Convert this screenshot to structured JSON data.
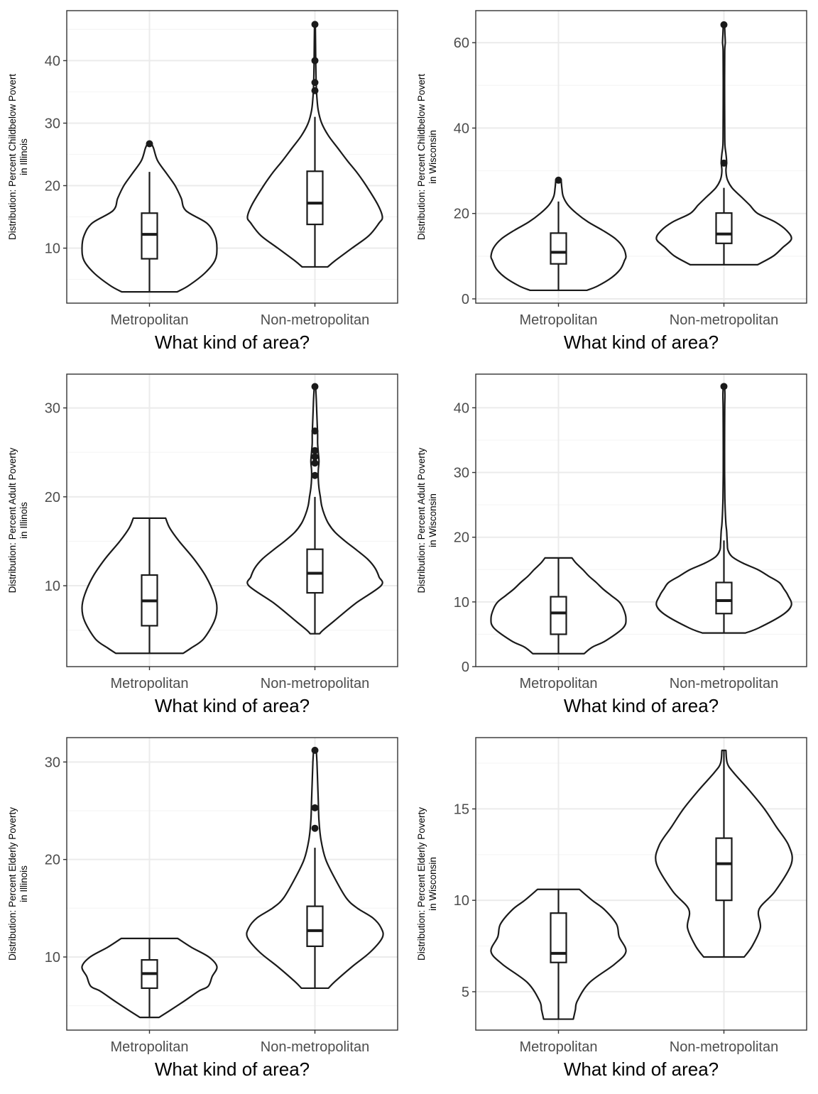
{
  "figure": {
    "background": "#ffffff",
    "panel_border": "#333333",
    "grid_major": "#ebebeb",
    "grid_minor": "#f5f5f5",
    "ink": "#1a1a1a"
  },
  "chart_data": [
    {
      "type": "violin",
      "xlabel": "What kind of area?",
      "ylabel_lines": [
        "Distribution: Percent Childbelow Povert",
        "in Illinois"
      ],
      "categories": [
        "Metropolitan",
        "Non-metropolitan"
      ],
      "ylim": [
        1.2,
        48.0
      ],
      "yticks": [
        10,
        20,
        30,
        40
      ],
      "yminor": [
        5,
        15,
        25,
        35,
        45
      ],
      "groups": [
        {
          "category": "Metropolitan",
          "min": 3.0,
          "q1": 8.3,
          "median": 12.2,
          "q3": 15.6,
          "whisker_high": 22.2,
          "max": 26.7,
          "outliers": [
            26.7
          ],
          "density": [
            [
              3.0,
              0.41
            ],
            [
              4.0,
              0.58
            ],
            [
              6.0,
              0.82
            ],
            [
              8.0,
              0.97
            ],
            [
              10.0,
              1.0
            ],
            [
              12.0,
              0.97
            ],
            [
              14.0,
              0.85
            ],
            [
              16.0,
              0.54
            ],
            [
              18.0,
              0.47
            ],
            [
              20.0,
              0.38
            ],
            [
              22.0,
              0.25
            ],
            [
              24.0,
              0.12
            ],
            [
              26.0,
              0.06
            ],
            [
              26.7,
              0.03
            ]
          ]
        },
        {
          "category": "Non-metropolitan",
          "min": 7.0,
          "q1": 13.8,
          "median": 17.2,
          "q3": 22.3,
          "whisker_high": 31.0,
          "max": 45.8,
          "outliers": [
            35.2,
            36.5,
            40.0,
            45.8
          ],
          "density": [
            [
              7.0,
              0.19
            ],
            [
              8.0,
              0.3
            ],
            [
              10.0,
              0.55
            ],
            [
              12.0,
              0.8
            ],
            [
              14.0,
              0.95
            ],
            [
              15.0,
              1.0
            ],
            [
              17.0,
              0.93
            ],
            [
              20.0,
              0.76
            ],
            [
              22.0,
              0.63
            ],
            [
              24.0,
              0.48
            ],
            [
              26.0,
              0.34
            ],
            [
              28.0,
              0.2
            ],
            [
              30.0,
              0.1
            ],
            [
              32.0,
              0.05
            ],
            [
              34.0,
              0.03
            ],
            [
              36.0,
              0.02
            ],
            [
              38.0,
              0.015
            ],
            [
              40.0,
              0.012
            ],
            [
              42.0,
              0.01
            ],
            [
              44.0,
              0.008
            ],
            [
              45.8,
              0.006
            ]
          ]
        }
      ]
    },
    {
      "type": "violin",
      "xlabel": "What kind of area?",
      "ylabel_lines": [
        "Distribution: Percent Childbelow Povert",
        "in Wisconsin"
      ],
      "categories": [
        "Metropolitan",
        "Non-metropolitan"
      ],
      "ylim": [
        -1.0,
        67.5
      ],
      "yticks": [
        0,
        20,
        40,
        60
      ],
      "yminor": [
        10,
        30,
        50
      ],
      "groups": [
        {
          "category": "Metropolitan",
          "min": 2.0,
          "q1": 8.2,
          "median": 10.9,
          "q3": 15.4,
          "whisker_high": 22.8,
          "max": 27.8,
          "outliers": [
            27.8
          ],
          "density": [
            [
              2.0,
              0.42
            ],
            [
              3.0,
              0.58
            ],
            [
              5.0,
              0.79
            ],
            [
              7.0,
              0.92
            ],
            [
              9.0,
              0.98
            ],
            [
              10.0,
              1.0
            ],
            [
              12.0,
              0.96
            ],
            [
              14.0,
              0.85
            ],
            [
              16.0,
              0.66
            ],
            [
              18.0,
              0.44
            ],
            [
              20.0,
              0.27
            ],
            [
              22.0,
              0.14
            ],
            [
              24.0,
              0.07
            ],
            [
              26.0,
              0.05
            ],
            [
              27.8,
              0.04
            ]
          ]
        },
        {
          "category": "Non-metropolitan",
          "min": 8.0,
          "q1": 13.0,
          "median": 15.2,
          "q3": 20.1,
          "whisker_high": 26.0,
          "max": 64.2,
          "outliers": [
            31.8,
            64.2
          ],
          "density": [
            [
              8.0,
              0.5
            ],
            [
              10.0,
              0.73
            ],
            [
              12.0,
              0.87
            ],
            [
              14.0,
              1.0
            ],
            [
              16.0,
              0.93
            ],
            [
              18.0,
              0.76
            ],
            [
              20.0,
              0.5
            ],
            [
              22.0,
              0.38
            ],
            [
              24.0,
              0.25
            ],
            [
              26.0,
              0.12
            ],
            [
              28.0,
              0.05
            ],
            [
              30.0,
              0.03
            ],
            [
              32.0,
              0.04
            ],
            [
              34.0,
              0.03
            ],
            [
              36.0,
              0.015
            ],
            [
              40.0,
              0.012
            ],
            [
              50.0,
              0.01
            ],
            [
              58.0,
              0.012
            ],
            [
              60.0,
              0.02
            ],
            [
              62.0,
              0.015
            ],
            [
              64.2,
              0.01
            ]
          ]
        }
      ]
    },
    {
      "type": "violin",
      "xlabel": "What kind of area?",
      "ylabel_lines": [
        "Distribution: Percent Adult Poverty",
        "in Illinois"
      ],
      "categories": [
        "Metropolitan",
        "Non-metropolitan"
      ],
      "ylim": [
        0.9,
        33.8
      ],
      "yticks": [
        10,
        20,
        30
      ],
      "yminor": [
        5,
        15,
        25
      ],
      "groups": [
        {
          "category": "Metropolitan",
          "min": 2.4,
          "q1": 5.5,
          "median": 8.3,
          "q3": 11.2,
          "whisker_high": 17.6,
          "max": 17.6,
          "outliers": [],
          "density": [
            [
              2.4,
              0.5
            ],
            [
              3.0,
              0.62
            ],
            [
              4.0,
              0.8
            ],
            [
              6.0,
              0.96
            ],
            [
              7.5,
              1.0
            ],
            [
              9.0,
              0.96
            ],
            [
              11.0,
              0.84
            ],
            [
              13.0,
              0.66
            ],
            [
              15.0,
              0.44
            ],
            [
              16.5,
              0.3
            ],
            [
              17.6,
              0.24
            ]
          ]
        },
        {
          "category": "Non-metropolitan",
          "min": 4.6,
          "q1": 9.2,
          "median": 11.4,
          "q3": 14.1,
          "whisker_high": 20.0,
          "max": 32.4,
          "outliers": [
            22.4,
            23.8,
            24.5,
            25.2,
            27.4,
            32.4
          ],
          "density": [
            [
              4.6,
              0.07
            ],
            [
              5.0,
              0.12
            ],
            [
              6.0,
              0.28
            ],
            [
              8.0,
              0.6
            ],
            [
              10.0,
              0.98
            ],
            [
              11.0,
              0.95
            ],
            [
              12.0,
              0.89
            ],
            [
              13.0,
              0.78
            ],
            [
              14.0,
              0.62
            ],
            [
              15.0,
              0.45
            ],
            [
              16.0,
              0.3
            ],
            [
              17.0,
              0.2
            ],
            [
              18.0,
              0.14
            ],
            [
              19.0,
              0.1
            ],
            [
              20.0,
              0.08
            ],
            [
              21.0,
              0.06
            ],
            [
              22.0,
              0.05
            ],
            [
              23.0,
              0.05
            ],
            [
              24.0,
              0.06
            ],
            [
              25.0,
              0.05
            ],
            [
              26.0,
              0.04
            ],
            [
              27.0,
              0.04
            ],
            [
              28.0,
              0.035
            ],
            [
              29.0,
              0.03
            ],
            [
              30.0,
              0.025
            ],
            [
              31.0,
              0.02
            ],
            [
              32.4,
              0.01
            ]
          ]
        }
      ]
    },
    {
      "type": "violin",
      "xlabel": "What kind of area?",
      "ylabel_lines": [
        "Distribution: Percent Adult Poverty",
        "in Wisconsin"
      ],
      "categories": [
        "Metropolitan",
        "Non-metropolitan"
      ],
      "ylim": [
        0,
        45.2
      ],
      "yticks": [
        0,
        10,
        20,
        30,
        40
      ],
      "yminor": [
        5,
        15,
        25,
        35
      ],
      "groups": [
        {
          "category": "Metropolitan",
          "min": 2.0,
          "q1": 5.0,
          "median": 8.3,
          "q3": 10.8,
          "whisker_high": 16.8,
          "max": 16.8,
          "outliers": [],
          "density": [
            [
              2.0,
              0.38
            ],
            [
              3.0,
              0.5
            ],
            [
              4.0,
              0.7
            ],
            [
              6.0,
              0.96
            ],
            [
              7.5,
              1.0
            ],
            [
              9.0,
              0.96
            ],
            [
              10.0,
              0.9
            ],
            [
              11.0,
              0.78
            ],
            [
              12.0,
              0.66
            ],
            [
              13.0,
              0.56
            ],
            [
              14.0,
              0.45
            ],
            [
              15.0,
              0.36
            ],
            [
              16.0,
              0.26
            ],
            [
              16.8,
              0.2
            ]
          ]
        },
        {
          "category": "Non-metropolitan",
          "min": 5.2,
          "q1": 8.2,
          "median": 10.2,
          "q3": 13.0,
          "whisker_high": 19.5,
          "max": 43.3,
          "outliers": [
            43.3
          ],
          "density": [
            [
              5.2,
              0.32
            ],
            [
              6.0,
              0.52
            ],
            [
              8.0,
              0.87
            ],
            [
              9.5,
              1.0
            ],
            [
              11.0,
              0.95
            ],
            [
              12.0,
              0.89
            ],
            [
              13.0,
              0.82
            ],
            [
              14.0,
              0.66
            ],
            [
              15.0,
              0.5
            ],
            [
              16.0,
              0.28
            ],
            [
              17.0,
              0.12
            ],
            [
              18.0,
              0.06
            ],
            [
              19.0,
              0.05
            ],
            [
              20.0,
              0.045
            ],
            [
              21.0,
              0.04
            ],
            [
              22.0,
              0.03
            ],
            [
              24.0,
              0.02
            ],
            [
              26.0,
              0.014
            ],
            [
              30.0,
              0.01
            ],
            [
              35.0,
              0.01
            ],
            [
              40.0,
              0.012
            ],
            [
              42.0,
              0.015
            ],
            [
              43.3,
              0.01
            ]
          ]
        }
      ]
    },
    {
      "type": "violin",
      "xlabel": "What kind of area?",
      "ylabel_lines": [
        "Distribution: Percent Elderly Poverty",
        "in Illinois"
      ],
      "categories": [
        "Metropolitan",
        "Non-metropolitan"
      ],
      "ylim": [
        2.5,
        32.5
      ],
      "yticks": [
        10,
        20,
        30
      ],
      "yminor": [
        5,
        15,
        25
      ],
      "groups": [
        {
          "category": "Metropolitan",
          "min": 3.8,
          "q1": 6.8,
          "median": 8.3,
          "q3": 9.7,
          "whisker_high": 11.9,
          "max": 11.9,
          "outliers": [],
          "density": [
            [
              3.8,
              0.14
            ],
            [
              4.5,
              0.3
            ],
            [
              5.5,
              0.52
            ],
            [
              6.5,
              0.73
            ],
            [
              7.0,
              0.87
            ],
            [
              8.0,
              0.93
            ],
            [
              9.0,
              1.0
            ],
            [
              10.0,
              0.88
            ],
            [
              11.0,
              0.62
            ],
            [
              11.9,
              0.42
            ]
          ]
        },
        {
          "category": "Non-metropolitan",
          "min": 6.8,
          "q1": 11.1,
          "median": 12.7,
          "q3": 15.2,
          "whisker_high": 21.2,
          "max": 31.2,
          "outliers": [
            23.2,
            25.3,
            31.2
          ],
          "density": [
            [
              6.8,
              0.2
            ],
            [
              7.5,
              0.3
            ],
            [
              9.0,
              0.55
            ],
            [
              10.5,
              0.82
            ],
            [
              12.0,
              1.0
            ],
            [
              13.0,
              0.98
            ],
            [
              14.0,
              0.86
            ],
            [
              15.0,
              0.63
            ],
            [
              16.0,
              0.47
            ],
            [
              18.0,
              0.3
            ],
            [
              20.0,
              0.16
            ],
            [
              22.0,
              0.09
            ],
            [
              24.0,
              0.06
            ],
            [
              26.0,
              0.05
            ],
            [
              28.0,
              0.04
            ],
            [
              30.0,
              0.03
            ],
            [
              31.2,
              0.02
            ]
          ]
        }
      ]
    },
    {
      "type": "violin",
      "xlabel": "What kind of area?",
      "ylabel_lines": [
        "Distribution: Percent Elderly Poverty",
        "in Wisconsin"
      ],
      "categories": [
        "Metropolitan",
        "Non-metropolitan"
      ],
      "ylim": [
        2.9,
        18.9
      ],
      "yticks": [
        5,
        10,
        15
      ],
      "yminor": [
        7.5,
        12.5,
        17.5
      ],
      "groups": [
        {
          "category": "Metropolitan",
          "min": 3.5,
          "q1": 6.6,
          "median": 7.1,
          "q3": 9.3,
          "whisker_high": 10.6,
          "max": 10.6,
          "outliers": [],
          "density": [
            [
              3.5,
              0.22
            ],
            [
              4.0,
              0.25
            ],
            [
              4.5,
              0.28
            ],
            [
              5.5,
              0.46
            ],
            [
              6.5,
              0.83
            ],
            [
              7.2,
              1.0
            ],
            [
              8.0,
              0.9
            ],
            [
              8.7,
              0.86
            ],
            [
              9.5,
              0.68
            ],
            [
              10.0,
              0.5
            ],
            [
              10.6,
              0.31
            ]
          ]
        },
        {
          "category": "Non-metropolitan",
          "min": 6.9,
          "q1": 10.0,
          "median": 12.0,
          "q3": 13.4,
          "whisker_high": 18.2,
          "max": 18.2,
          "outliers": [],
          "density": [
            [
              6.9,
              0.3
            ],
            [
              7.5,
              0.42
            ],
            [
              8.5,
              0.54
            ],
            [
              9.5,
              0.52
            ],
            [
              10.5,
              0.76
            ],
            [
              12.0,
              1.0
            ],
            [
              13.0,
              0.96
            ],
            [
              14.0,
              0.78
            ],
            [
              15.0,
              0.6
            ],
            [
              16.0,
              0.38
            ],
            [
              17.0,
              0.14
            ],
            [
              17.5,
              0.05
            ],
            [
              18.2,
              0.03
            ]
          ]
        }
      ]
    }
  ]
}
